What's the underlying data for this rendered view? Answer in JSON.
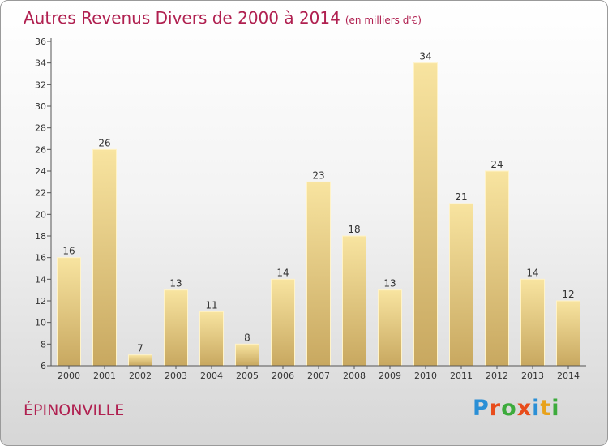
{
  "title": "Autres Revenus Divers de 2000 à 2014",
  "subtitle": "(en milliers d'€)",
  "commune": "ÉPINONVILLE",
  "logo": {
    "letters": [
      "P",
      "r",
      "o",
      "x",
      "i",
      "t",
      "i"
    ],
    "colors": [
      "#2a8fd6",
      "#e84c1b",
      "#3cab3c",
      "#e84c1b",
      "#2a8fd6",
      "#e8a21b",
      "#3cab3c"
    ]
  },
  "colors": {
    "bar_light": "#f8e4a0",
    "bar_dark": "#c8a860",
    "title": "#b02050"
  },
  "chart_data": {
    "type": "bar",
    "title": "Autres Revenus Divers de 2000 à 2014",
    "xlabel": "",
    "ylabel": "",
    "categories": [
      "2000",
      "2001",
      "2002",
      "2003",
      "2004",
      "2005",
      "2006",
      "2007",
      "2008",
      "2009",
      "2010",
      "2011",
      "2012",
      "2013",
      "2014"
    ],
    "values": [
      16,
      26,
      7,
      13,
      11,
      8,
      14,
      23,
      18,
      13,
      34,
      21,
      24,
      14,
      12
    ],
    "ylim": [
      6,
      36
    ],
    "yticks": [
      6,
      8,
      10,
      12,
      14,
      16,
      18,
      20,
      22,
      24,
      26,
      28,
      30,
      32,
      34,
      36
    ],
    "grid": false
  }
}
